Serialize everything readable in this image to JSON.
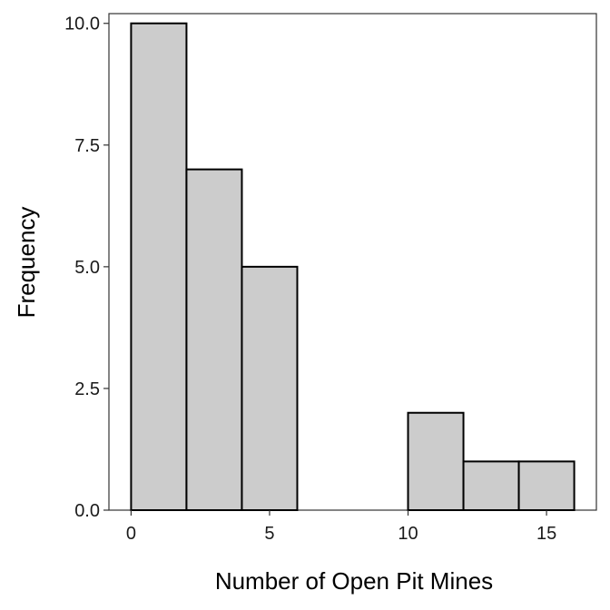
{
  "chart_data": {
    "type": "bar",
    "title": "",
    "xlabel": "Number of Open Pit Mines",
    "ylabel": "Frequency",
    "bins": [
      {
        "x0": 0,
        "x1": 2,
        "count": 10
      },
      {
        "x0": 2,
        "x1": 4,
        "count": 7
      },
      {
        "x0": 4,
        "x1": 6,
        "count": 5
      },
      {
        "x0": 6,
        "x1": 8,
        "count": 0
      },
      {
        "x0": 8,
        "x1": 10,
        "count": 0
      },
      {
        "x0": 10,
        "x1": 12,
        "count": 2
      },
      {
        "x0": 12,
        "x1": 14,
        "count": 1
      },
      {
        "x0": 14,
        "x1": 16,
        "count": 1
      }
    ],
    "xlim": [
      -0.8,
      16.8
    ],
    "ylim": [
      0,
      10.2
    ],
    "xticks": [
      0,
      5,
      10,
      15
    ],
    "xtick_labels": [
      "0",
      "5",
      "10",
      "15"
    ],
    "yticks": [
      0,
      2.5,
      5,
      7.5,
      10
    ],
    "ytick_labels": [
      "0.0",
      "2.5",
      "5.0",
      "7.5",
      "10.0"
    ],
    "grid": false,
    "bar_fill": "#cccccc",
    "bar_stroke": "#000000",
    "axis_color": "#333333"
  }
}
